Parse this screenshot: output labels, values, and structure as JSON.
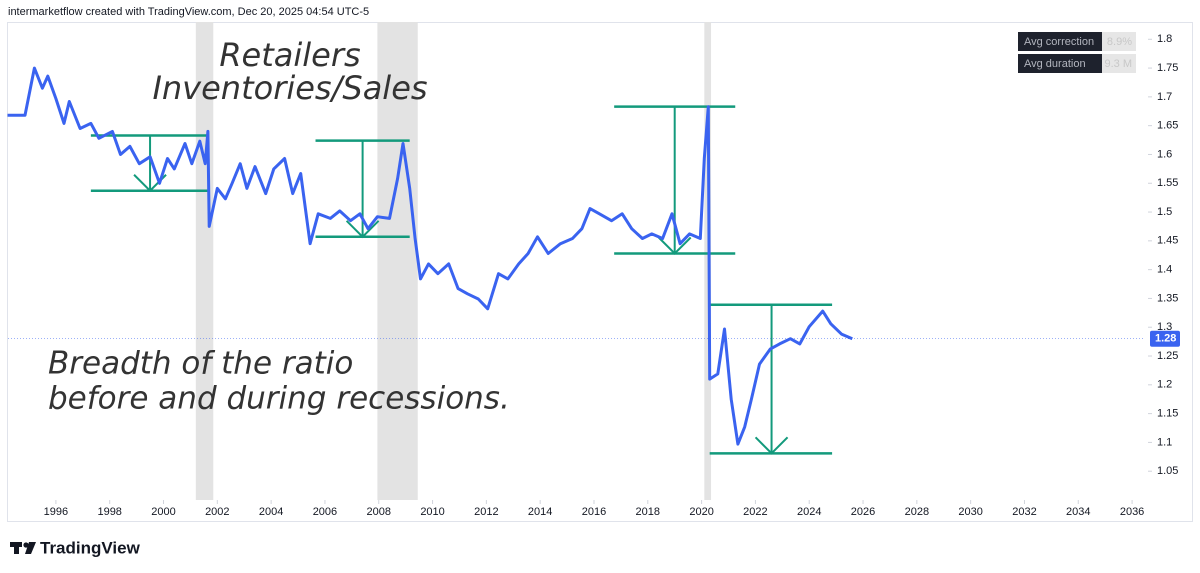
{
  "header": "intermarketflow created with TradingView.com, Dec 20, 2025 04:54 UTC-5",
  "logo": "TradingView",
  "chart_data": {
    "type": "line",
    "title": [
      "Retailers",
      "Inventories/Sales"
    ],
    "annotation": [
      "Breadth of the ratio",
      "before and during recessions."
    ],
    "stats_table": [
      [
        "Avg correction",
        "8.9%"
      ],
      [
        "Avg duration",
        "9.3 M"
      ]
    ],
    "x": [
      1994.2,
      1994.85,
      1995.2,
      1995.5,
      1995.7,
      1996.0,
      1996.3,
      1996.5,
      1996.9,
      1997.3,
      1997.6,
      1998.1,
      1998.4,
      1998.75,
      1999.1,
      1999.5,
      1999.85,
      2000.15,
      2000.4,
      2000.8,
      2001.05,
      2001.35,
      2001.55,
      2001.65,
      2001.7,
      2002.0,
      2002.3,
      2002.55,
      2002.85,
      2003.1,
      2003.4,
      2003.8,
      2004.1,
      2004.5,
      2004.8,
      2005.1,
      2005.45,
      2005.75,
      2006.2,
      2006.55,
      2006.95,
      2007.3,
      2007.6,
      2007.95,
      2008.4,
      2008.7,
      2008.9,
      2009.15,
      2009.35,
      2009.55,
      2009.85,
      2010.2,
      2010.6,
      2010.95,
      2011.3,
      2011.7,
      2012.05,
      2012.45,
      2012.8,
      2013.2,
      2013.55,
      2013.9,
      2014.3,
      2014.75,
      2015.2,
      2015.55,
      2015.85,
      2016.2,
      2016.65,
      2017.05,
      2017.4,
      2017.8,
      2018.15,
      2018.55,
      2018.9,
      2019.2,
      2019.55,
      2019.95,
      2020.1,
      2020.25,
      2020.3,
      2020.6,
      2020.85,
      2021.1,
      2021.35,
      2021.6,
      2021.85,
      2022.15,
      2022.55,
      2022.9,
      2023.3,
      2023.65,
      2024.0,
      2024.5,
      2024.8,
      2025.2,
      2025.6
    ],
    "series": [
      {
        "color": "#3a63f0",
        "values": [
          1.668,
          1.668,
          1.75,
          1.715,
          1.736,
          1.697,
          1.654,
          1.692,
          1.645,
          1.654,
          1.628,
          1.64,
          1.6,
          1.614,
          1.584,
          1.596,
          1.55,
          1.593,
          1.575,
          1.619,
          1.584,
          1.623,
          1.584,
          1.64,
          1.475,
          1.541,
          1.523,
          1.55,
          1.584,
          1.541,
          1.579,
          1.532,
          1.575,
          1.593,
          1.532,
          1.567,
          1.445,
          1.497,
          1.489,
          1.502,
          1.485,
          1.497,
          1.471,
          1.492,
          1.489,
          1.558,
          1.619,
          1.541,
          1.454,
          1.384,
          1.41,
          1.393,
          1.41,
          1.367,
          1.358,
          1.349,
          1.332,
          1.393,
          1.384,
          1.41,
          1.428,
          1.457,
          1.428,
          1.445,
          1.454,
          1.471,
          1.506,
          1.497,
          1.485,
          1.497,
          1.471,
          1.454,
          1.462,
          1.454,
          1.497,
          1.445,
          1.462,
          1.454,
          1.593,
          1.683,
          1.21,
          1.219,
          1.297,
          1.175,
          1.097,
          1.127,
          1.175,
          1.236,
          1.262,
          1.271,
          1.28,
          1.271,
          1.301,
          1.328,
          1.306,
          1.288,
          1.28
        ]
      }
    ],
    "xlim": [
      1994.22,
      2036.48
    ],
    "xticks": [
      1996,
      1998,
      2000,
      2002,
      2004,
      2006,
      2008,
      2010,
      2012,
      2014,
      2016,
      2018,
      2020,
      2022,
      2024,
      2026,
      2028,
      2030,
      2032,
      2034,
      2036
    ],
    "ylim": [
      1.0,
      1.83
    ],
    "yticks": [
      1.05,
      1.1,
      1.15,
      1.2,
      1.25,
      1.3,
      1.35,
      1.4,
      1.45,
      1.5,
      1.55,
      1.6,
      1.65,
      1.7,
      1.75,
      1.8
    ],
    "recessions": [
      [
        2001.2,
        2001.85
      ],
      [
        2007.95,
        2009.45
      ],
      [
        2020.1,
        2020.35
      ]
    ],
    "recession_color": "#e3e3e3",
    "brackets": [
      {
        "x": [
          1997.3,
          2001.65
        ],
        "high": 1.633,
        "low": 1.537,
        "arrow_x": 1999.5
      },
      {
        "x": [
          2005.65,
          2009.15
        ],
        "high": 1.624,
        "low": 1.457,
        "arrow_x": 2007.4
      },
      {
        "x": [
          2016.75,
          2021.25
        ],
        "high": 1.683,
        "low": 1.428,
        "arrow_x": 2019.0
      },
      {
        "x": [
          2020.3,
          2024.85
        ],
        "high": 1.339,
        "low": 1.081,
        "arrow_x": 2022.6
      }
    ],
    "bracket_color": "#139a7c",
    "grid": false
  }
}
